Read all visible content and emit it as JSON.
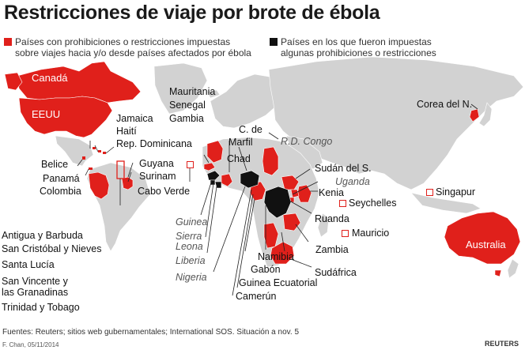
{
  "title": "Restricciones de viaje por brote de ébola",
  "legend": {
    "red": {
      "text1": "Países con prohibiciones o restricciones impuestas",
      "text2": "sobre viajes hacia y/o desde países afectados por ébola",
      "color": "#e0201b"
    },
    "black": {
      "text1": "Países en los que fueron impuestas",
      "text2": "algunas prohibiciones o restricciones",
      "color": "#111111"
    }
  },
  "colors": {
    "restricted": "#e0201b",
    "affected": "#111111",
    "land": "#d2d2d2",
    "ocean": "#ffffff"
  },
  "countries": {
    "canada": "Canadá",
    "eeuu": "EEUU",
    "jamaica": "Jamaica",
    "haiti": "Haití",
    "rep_dominicana": "Rep. Dominicana",
    "belice": "Belice",
    "panama": "Panamá",
    "colombia": "Colombia",
    "guyana": "Guyana",
    "surinam": "Surinam",
    "cabo_verde": "Cabo Verde",
    "antigua": "Antigua y Barbuda",
    "san_cristobal": "San Cristóbal y Nieves",
    "santa_lucia": "Santa Lucía",
    "san_vincente_1": "San Vincente y",
    "san_vincente_2": "las Granadinas",
    "trinidad": "Trinidad y Tobago",
    "mauritania": "Mauritania",
    "senegal": "Senegal",
    "gambia": "Gambia",
    "c_de_marfil_1": "C. de",
    "c_de_marfil_2": "Marfil",
    "chad": "Chad",
    "rd_congo": "R.D. Congo",
    "guinea": "Guinea",
    "sierra_leona_1": "Sierra",
    "sierra_leona_2": "Leona",
    "liberia": "Liberia",
    "nigeria": "Nigeria",
    "sudan_sur": "Sudán del S.",
    "uganda": "Uganda",
    "kenia": "Kenia",
    "seychelles": "Seychelles",
    "ruanda": "Ruanda",
    "mauricio": "Mauricio",
    "zambia": "Zambia",
    "namibia": "Namibia",
    "gabon": "Gabón",
    "guinea_ecuatorial": "Guinea Ecuatorial",
    "camerun": "Camerún",
    "sudafrica": "Sudáfrica",
    "corea_norte": "Corea del N.",
    "singapur": "Singapur",
    "australia": "Australia"
  },
  "footer": {
    "sources": "Fuentes: Reuters; sitios web gubernamentales; International SOS.   Situación a nov. 5",
    "credit": "F. Chan, 05/11/2014",
    "logo": "REUTERS"
  }
}
